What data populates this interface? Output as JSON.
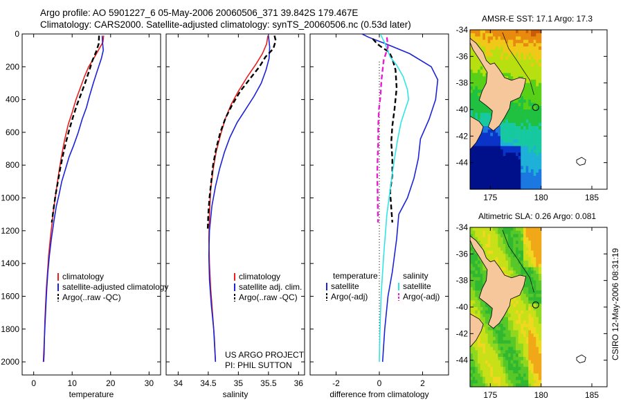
{
  "header": {
    "line1": "Argo profile: AO 5901227_6 05-May-2006 20060506_371 39.842S 179.467E",
    "line2": "Climatology: CARS2000. Satellite-adjusted climatology: synTS_20060506.nc (0.53d later)"
  },
  "side_label": "CSIRO 12-May-2006 08:31:19",
  "colors": {
    "red": "#e81f1f",
    "blue": "#1a22d8",
    "black": "#000000",
    "cyan": "#2ee6e6",
    "magenta": "#e61ecf",
    "deep_blue": "#0a1f8c",
    "land": "#f5c79a"
  },
  "chart_data": [
    {
      "type": "line",
      "name": "temperature-profile",
      "xlabel": "temperature",
      "ylabel": "",
      "xlim": [
        -3,
        33
      ],
      "ylim": [
        2080,
        0
      ],
      "xticks": [
        0,
        10,
        20,
        30
      ],
      "yticks": [
        0,
        200,
        400,
        600,
        800,
        1000,
        1200,
        1400,
        1600,
        1800,
        2000
      ],
      "legend": [
        "climatology",
        "satellite-adjusted climatology",
        "Argo(..raw -QC)"
      ],
      "series": [
        {
          "name": "climatology",
          "color": "red",
          "dash": false,
          "points": [
            [
              18.2,
              10
            ],
            [
              18.0,
              50
            ],
            [
              16.8,
              100
            ],
            [
              15.6,
              150
            ],
            [
              14.3,
              200
            ],
            [
              13.2,
              260
            ],
            [
              12.1,
              330
            ],
            [
              11.0,
              400
            ],
            [
              10.0,
              480
            ],
            [
              9.0,
              550
            ],
            [
              8.0,
              650
            ],
            [
              7.2,
              750
            ],
            [
              6.5,
              850
            ],
            [
              5.9,
              950
            ],
            [
              5.3,
              1050
            ],
            [
              4.8,
              1150
            ],
            [
              4.3,
              1250
            ],
            [
              3.9,
              1350
            ],
            [
              3.6,
              1450
            ],
            [
              3.3,
              1550
            ],
            [
              3.1,
              1650
            ],
            [
              2.9,
              1750
            ],
            [
              2.8,
              1850
            ],
            [
              2.6,
              1950
            ],
            [
              2.5,
              2000
            ]
          ]
        },
        {
          "name": "satellite-adjusted climatology",
          "color": "blue",
          "dash": false,
          "points": [
            [
              17.8,
              10
            ],
            [
              17.9,
              50
            ],
            [
              18.1,
              100
            ],
            [
              17.6,
              150
            ],
            [
              16.6,
              220
            ],
            [
              15.5,
              300
            ],
            [
              14.5,
              380
            ],
            [
              13.7,
              450
            ],
            [
              12.6,
              520
            ],
            [
              11.6,
              600
            ],
            [
              10.4,
              680
            ],
            [
              9.2,
              750
            ],
            [
              8.2,
              830
            ],
            [
              7.3,
              900
            ],
            [
              6.6,
              980
            ],
            [
              5.9,
              1050
            ],
            [
              5.2,
              1150
            ],
            [
              4.6,
              1250
            ],
            [
              4.1,
              1350
            ],
            [
              3.7,
              1450
            ],
            [
              3.4,
              1550
            ],
            [
              3.2,
              1650
            ],
            [
              3.0,
              1750
            ],
            [
              2.8,
              1850
            ],
            [
              2.7,
              1950
            ],
            [
              2.6,
              2000
            ]
          ]
        },
        {
          "name": "Argo(..raw -QC)",
          "color": "black",
          "dash": true,
          "points": [
            [
              17.0,
              10
            ],
            [
              16.9,
              60
            ],
            [
              16.2,
              110
            ],
            [
              15.3,
              160
            ],
            [
              14.5,
              220
            ],
            [
              13.5,
              290
            ],
            [
              12.4,
              360
            ],
            [
              11.3,
              430
            ],
            [
              10.3,
              500
            ],
            [
              9.3,
              580
            ],
            [
              8.4,
              660
            ],
            [
              7.6,
              740
            ],
            [
              6.9,
              820
            ],
            [
              6.3,
              900
            ],
            [
              5.7,
              980
            ],
            [
              5.2,
              1060
            ],
            [
              4.7,
              1150
            ]
          ]
        }
      ]
    },
    {
      "type": "line",
      "name": "salinity-profile",
      "xlabel": "salinity",
      "ylabel": "",
      "xlim": [
        33.8,
        36.1
      ],
      "ylim": [
        2080,
        0
      ],
      "xticks": [
        34,
        34.5,
        35,
        35.5,
        36
      ],
      "legend": [
        "climatology",
        "satellite adj. clim.",
        "Argo(..raw -QC)"
      ],
      "series": [
        {
          "name": "climatology",
          "color": "red",
          "dash": false,
          "points": [
            [
              35.49,
              10
            ],
            [
              35.47,
              60
            ],
            [
              35.4,
              120
            ],
            [
              35.3,
              180
            ],
            [
              35.15,
              260
            ],
            [
              35.0,
              350
            ],
            [
              34.88,
              430
            ],
            [
              34.78,
              520
            ],
            [
              34.7,
              620
            ],
            [
              34.63,
              720
            ],
            [
              34.58,
              830
            ],
            [
              34.54,
              950
            ],
            [
              34.52,
              1100
            ],
            [
              34.51,
              1250
            ],
            [
              34.52,
              1400
            ],
            [
              34.54,
              1550
            ],
            [
              34.57,
              1700
            ],
            [
              34.6,
              1850
            ],
            [
              34.62,
              2000
            ]
          ]
        },
        {
          "name": "satellite adj. clim.",
          "color": "blue",
          "dash": false,
          "points": [
            [
              35.5,
              10
            ],
            [
              35.52,
              80
            ],
            [
              35.51,
              150
            ],
            [
              35.46,
              220
            ],
            [
              35.38,
              300
            ],
            [
              35.26,
              380
            ],
            [
              35.12,
              460
            ],
            [
              34.98,
              540
            ],
            [
              34.86,
              630
            ],
            [
              34.77,
              720
            ],
            [
              34.69,
              820
            ],
            [
              34.62,
              930
            ],
            [
              34.56,
              1050
            ],
            [
              34.52,
              1200
            ],
            [
              34.51,
              1350
            ],
            [
              34.52,
              1500
            ],
            [
              34.55,
              1650
            ],
            [
              34.59,
              1800
            ],
            [
              34.62,
              2000
            ]
          ]
        },
        {
          "name": "Argo(..raw -QC)",
          "color": "black",
          "dash": true,
          "points": [
            [
              35.6,
              10
            ],
            [
              35.62,
              40
            ],
            [
              35.58,
              90
            ],
            [
              35.45,
              140
            ],
            [
              35.35,
              200
            ],
            [
              35.2,
              270
            ],
            [
              35.03,
              350
            ],
            [
              34.9,
              430
            ],
            [
              34.79,
              510
            ],
            [
              34.7,
              600
            ],
            [
              34.63,
              700
            ],
            [
              34.58,
              800
            ],
            [
              34.55,
              900
            ],
            [
              34.52,
              1000
            ],
            [
              34.5,
              1100
            ],
            [
              34.49,
              1200
            ]
          ]
        }
      ]
    },
    {
      "type": "line",
      "name": "difference-profile",
      "xlabel": "difference from climatology",
      "ylabel": "",
      "xlim": [
        -3.2,
        3.2
      ],
      "ylim": [
        2080,
        0
      ],
      "xticks": [
        -2,
        0,
        2
      ],
      "legend_headers": [
        "temperature",
        "salinity"
      ],
      "legend": [
        "satellite",
        "Argo(-adj)",
        "satellite",
        "Argo(-adj)"
      ],
      "series": [
        {
          "name": "temperature satellite",
          "color": "blue",
          "dash": false,
          "points": [
            [
              -0.8,
              0
            ],
            [
              -0.5,
              20
            ],
            [
              0.3,
              60
            ],
            [
              1.4,
              120
            ],
            [
              2.4,
              200
            ],
            [
              2.7,
              280
            ],
            [
              2.6,
              400
            ],
            [
              2.3,
              520
            ],
            [
              1.9,
              640
            ],
            [
              1.8,
              760
            ],
            [
              1.6,
              880
            ],
            [
              1.3,
              1000
            ],
            [
              0.9,
              1100
            ],
            [
              0.8,
              1250
            ],
            [
              0.6,
              1450
            ],
            [
              0.4,
              1600
            ],
            [
              0.25,
              1800
            ],
            [
              0.15,
              2000
            ]
          ]
        },
        {
          "name": "temperature Argo(-adj)",
          "color": "black",
          "dash": true,
          "points": [
            [
              -0.3,
              30
            ],
            [
              -0.1,
              60
            ],
            [
              0.1,
              80
            ],
            [
              0.45,
              110
            ],
            [
              0.6,
              150
            ],
            [
              0.75,
              220
            ],
            [
              0.8,
              330
            ],
            [
              0.7,
              460
            ],
            [
              0.6,
              560
            ],
            [
              0.55,
              660
            ],
            [
              0.6,
              760
            ],
            [
              0.6,
              860
            ],
            [
              0.5,
              960
            ],
            [
              0.55,
              1060
            ],
            [
              0.6,
              1150
            ]
          ]
        },
        {
          "name": "salinity satellite",
          "color": "cyan",
          "dash": false,
          "points": [
            [
              0.05,
              0
            ],
            [
              0.3,
              70
            ],
            [
              0.5,
              140
            ],
            [
              0.8,
              190
            ],
            [
              1.1,
              260
            ],
            [
              1.3,
              340
            ],
            [
              1.35,
              400
            ],
            [
              1.2,
              460
            ],
            [
              1.0,
              540
            ],
            [
              0.85,
              640
            ],
            [
              0.7,
              760
            ],
            [
              0.55,
              900
            ],
            [
              0.35,
              1100
            ],
            [
              0.2,
              1350
            ],
            [
              0.08,
              1600
            ],
            [
              0.02,
              1850
            ],
            [
              0.0,
              2000
            ]
          ]
        },
        {
          "name": "salinity Argo(-adj)",
          "color": "magenta",
          "dash": true,
          "points": [
            [
              0.35,
              20
            ],
            [
              0.4,
              80
            ],
            [
              0.2,
              160
            ],
            [
              0.1,
              280
            ],
            [
              0.05,
              380
            ],
            [
              -0.02,
              460
            ],
            [
              -0.05,
              560
            ],
            [
              -0.05,
              660
            ],
            [
              -0.08,
              760
            ],
            [
              -0.1,
              860
            ],
            [
              -0.08,
              960
            ],
            [
              -0.07,
              1060
            ],
            [
              -0.06,
              1150
            ]
          ]
        }
      ]
    },
    {
      "type": "heatmap",
      "name": "sst-map",
      "title": "AMSR-E SST: 17.1 Argo: 17.3",
      "xlim": [
        173,
        186.5
      ],
      "ylim": [
        -46,
        -34
      ],
      "xticks": [
        175,
        180,
        185
      ],
      "yticks": [
        -34,
        -36,
        -38,
        -40,
        -42,
        -44
      ],
      "data_lon_range": [
        173,
        180
      ],
      "argo_position": [
        179.467,
        -39.842
      ]
    },
    {
      "type": "heatmap",
      "name": "sla-map",
      "title": "Altimetric SLA: 0.26 Argo: 0.081",
      "xlim": [
        173,
        186.5
      ],
      "ylim": [
        -46,
        -34
      ],
      "xticks": [
        175,
        180,
        185
      ],
      "yticks": [
        -34,
        -36,
        -38,
        -40,
        -42,
        -44
      ],
      "data_lon_range": [
        173,
        180
      ],
      "argo_position": [
        179.467,
        -39.842
      ]
    }
  ],
  "annotations": {
    "project_line1": "US ARGO PROJECT",
    "project_line2": "PI: PHIL SUTTON"
  }
}
